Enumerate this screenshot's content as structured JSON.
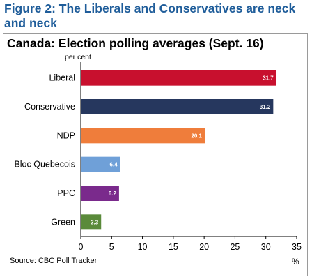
{
  "figure_title": "Figure 2: The Liberals and Conservatives are neck and neck",
  "source": "Source: CBC Poll Tracker",
  "chart_data": {
    "type": "bar",
    "orientation": "horizontal",
    "title": "Canada: Election polling averages (Sept. 16)",
    "ylabel": "per cent",
    "xlabel": "%",
    "categories": [
      "Liberal",
      "Conservative",
      "NDP",
      "Bloc Quebecois",
      "PPC",
      "Green"
    ],
    "values": [
      31.7,
      31.2,
      20.1,
      6.4,
      6.2,
      3.3
    ],
    "data_labels": [
      "31.7",
      "31.2",
      "20.1",
      "6.4",
      "6.2",
      "3.3"
    ],
    "colors": [
      "#c8102e",
      "#26375e",
      "#ef7d3b",
      "#6fa0d8",
      "#7a2a8c",
      "#5a8a3a"
    ],
    "xlim": [
      0,
      35
    ],
    "xticks": [
      0,
      5,
      10,
      15,
      20,
      25,
      30,
      35
    ],
    "xtick_labels": [
      "0",
      "5",
      "10",
      "15",
      "20",
      "25",
      "30",
      "35"
    ],
    "grid": false,
    "legend": "none"
  }
}
